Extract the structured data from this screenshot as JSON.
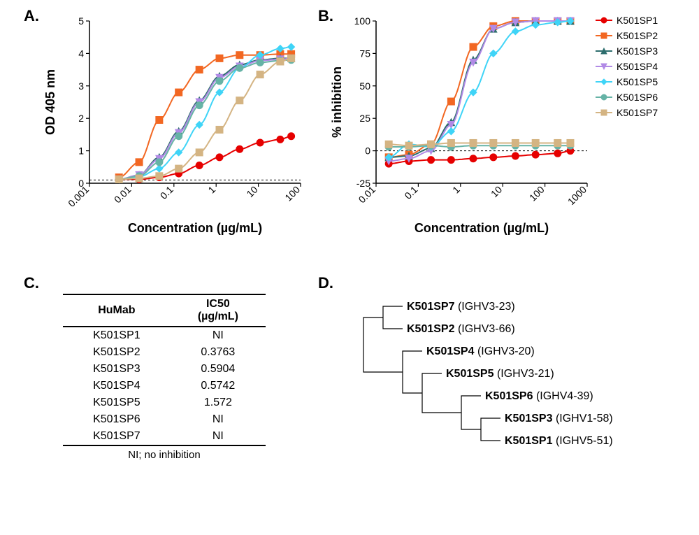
{
  "panels": {
    "A": {
      "label": "A."
    },
    "B": {
      "label": "B."
    },
    "C": {
      "label": "C."
    },
    "D": {
      "label": "D."
    }
  },
  "legend": {
    "items": [
      {
        "name": "K501SP1",
        "color": "#e60000",
        "marker": "circle"
      },
      {
        "name": "K501SP2",
        "color": "#f26722",
        "marker": "square"
      },
      {
        "name": "K501SP3",
        "color": "#2e6e6e",
        "marker": "triangle"
      },
      {
        "name": "K501SP4",
        "color": "#b18ae6",
        "marker": "triangleDown"
      },
      {
        "name": "K501SP5",
        "color": "#3fd4f7",
        "marker": "diamond"
      },
      {
        "name": "K501SP6",
        "color": "#66b3a6",
        "marker": "circle"
      },
      {
        "name": "K501SP7",
        "color": "#d4b483",
        "marker": "square"
      }
    ]
  },
  "chartA": {
    "type": "line",
    "title": null,
    "xlabel": "Concentration (µg/mL)",
    "ylabel": "OD 405 nm",
    "xscale": "log",
    "xlim": [
      0.001,
      100
    ],
    "xticks": [
      0.001,
      0.01,
      0.1,
      1,
      10,
      100
    ],
    "xtick_labels": [
      "0.001",
      "0.01",
      "0.1",
      "1",
      "10",
      "100"
    ],
    "ylim": [
      0,
      5
    ],
    "yticks": [
      0,
      1,
      2,
      3,
      4,
      5
    ],
    "ytick_labels": [
      "0",
      "1",
      "2",
      "3",
      "4",
      "5"
    ],
    "axis_color": "#000000",
    "ref_y": 0.1,
    "ref_dash": "3,3",
    "axis_fontsize": 14,
    "label_fontsize": 18,
    "marker_size": 5,
    "line_width": 2,
    "background_color": "#ffffff",
    "series": [
      {
        "key": "K501SP1",
        "x": [
          0.005,
          0.015,
          0.045,
          0.13,
          0.4,
          1.2,
          3.6,
          11,
          33,
          60
        ],
        "y": [
          0.12,
          0.12,
          0.18,
          0.3,
          0.55,
          0.8,
          1.05,
          1.25,
          1.35,
          1.45
        ]
      },
      {
        "key": "K501SP2",
        "x": [
          0.005,
          0.015,
          0.045,
          0.13,
          0.4,
          1.2,
          3.6,
          11,
          33,
          60
        ],
        "y": [
          0.18,
          0.65,
          1.95,
          2.8,
          3.5,
          3.85,
          3.95,
          3.95,
          3.98,
          3.98
        ]
      },
      {
        "key": "K501SP3",
        "x": [
          0.005,
          0.015,
          0.045,
          0.13,
          0.4,
          1.2,
          3.6,
          11,
          33,
          60
        ],
        "y": [
          0.12,
          0.25,
          0.8,
          1.6,
          2.55,
          3.3,
          3.65,
          3.8,
          3.85,
          3.85
        ]
      },
      {
        "key": "K501SP4",
        "x": [
          0.005,
          0.015,
          0.045,
          0.13,
          0.4,
          1.2,
          3.6,
          11,
          33,
          60
        ],
        "y": [
          0.12,
          0.25,
          0.75,
          1.55,
          2.5,
          3.25,
          3.6,
          3.78,
          3.82,
          3.85
        ]
      },
      {
        "key": "K501SP5",
        "x": [
          0.005,
          0.015,
          0.045,
          0.13,
          0.4,
          1.2,
          3.6,
          11,
          33,
          60
        ],
        "y": [
          0.12,
          0.2,
          0.45,
          0.95,
          1.8,
          2.8,
          3.55,
          3.95,
          4.15,
          4.2
        ]
      },
      {
        "key": "K501SP6",
        "x": [
          0.005,
          0.015,
          0.045,
          0.13,
          0.4,
          1.2,
          3.6,
          11,
          33,
          60
        ],
        "y": [
          0.12,
          0.22,
          0.65,
          1.45,
          2.4,
          3.15,
          3.55,
          3.72,
          3.78,
          3.8
        ]
      },
      {
        "key": "K501SP7",
        "x": [
          0.005,
          0.015,
          0.045,
          0.13,
          0.4,
          1.2,
          3.6,
          11,
          33,
          60
        ],
        "y": [
          0.12,
          0.15,
          0.22,
          0.45,
          0.95,
          1.65,
          2.55,
          3.35,
          3.75,
          3.85
        ]
      }
    ]
  },
  "chartB": {
    "type": "line",
    "title": null,
    "xlabel": "Concentration (µg/mL)",
    "ylabel": "% inhibition",
    "xscale": "log",
    "xlim": [
      0.01,
      1000
    ],
    "xticks": [
      0.01,
      0.1,
      1,
      10,
      100,
      1000
    ],
    "xtick_labels": [
      "0.01",
      "0.1",
      "1",
      "10",
      "100",
      "1000"
    ],
    "ylim": [
      -25,
      100
    ],
    "yticks": [
      -25,
      0,
      25,
      50,
      75,
      100
    ],
    "ytick_labels": [
      "-25",
      "0",
      "25",
      "50",
      "75",
      "100"
    ],
    "axis_color": "#000000",
    "ref_y": 0,
    "ref_dash": "3,3",
    "axis_fontsize": 14,
    "label_fontsize": 18,
    "marker_size": 5,
    "line_width": 2,
    "background_color": "#ffffff",
    "series": [
      {
        "key": "K501SP1",
        "x": [
          0.02,
          0.06,
          0.2,
          0.6,
          2,
          6,
          20,
          60,
          200,
          400
        ],
        "y": [
          -10,
          -8,
          -7,
          -7,
          -6,
          -5,
          -4,
          -3,
          -2,
          0
        ]
      },
      {
        "key": "K501SP2",
        "x": [
          0.02,
          0.06,
          0.2,
          0.6,
          2,
          6,
          20,
          60,
          200,
          400
        ],
        "y": [
          -5,
          -3,
          5,
          38,
          80,
          96,
          100,
          100,
          100,
          100
        ]
      },
      {
        "key": "K501SP3",
        "x": [
          0.02,
          0.06,
          0.2,
          0.6,
          2,
          6,
          20,
          60,
          200,
          400
        ],
        "y": [
          -5,
          -4,
          2,
          22,
          70,
          94,
          99,
          100,
          100,
          100
        ]
      },
      {
        "key": "K501SP4",
        "x": [
          0.02,
          0.06,
          0.2,
          0.6,
          2,
          6,
          20,
          60,
          200,
          400
        ],
        "y": [
          -8,
          -6,
          0,
          20,
          68,
          94,
          99,
          100,
          100,
          100
        ]
      },
      {
        "key": "K501SP5",
        "x": [
          0.02,
          0.06,
          0.2,
          0.6,
          2,
          6,
          20,
          60,
          200,
          400
        ],
        "y": [
          -5,
          5,
          3,
          15,
          45,
          75,
          92,
          97,
          99,
          100
        ]
      },
      {
        "key": "K501SP6",
        "x": [
          0.02,
          0.06,
          0.2,
          0.6,
          2,
          6,
          20,
          60,
          200,
          400
        ],
        "y": [
          3,
          3,
          4,
          3,
          4,
          4,
          4,
          4,
          4,
          4
        ]
      },
      {
        "key": "K501SP7",
        "x": [
          0.02,
          0.06,
          0.2,
          0.6,
          2,
          6,
          20,
          60,
          200,
          400
        ],
        "y": [
          5,
          4,
          5,
          6,
          6,
          6,
          6,
          6,
          6,
          6
        ]
      }
    ]
  },
  "tableC": {
    "columns": [
      "HuMab",
      "IC50 (µg/mL)"
    ],
    "col2_line1": "IC50",
    "col2_line2": "(µg/mL)",
    "rows": [
      [
        "K501SP1",
        "NI"
      ],
      [
        "K501SP2",
        "0.3763"
      ],
      [
        "K501SP3",
        "0.5904"
      ],
      [
        "K501SP4",
        "0.5742"
      ],
      [
        "K501SP5",
        "1.572"
      ],
      [
        "K501SP6",
        "NI"
      ],
      [
        "K501SP7",
        "NI"
      ]
    ],
    "footnote": "NI; no inhibition"
  },
  "treeD": {
    "type": "tree",
    "line_color": "#000000",
    "line_width": 1.2,
    "leaf_fontsize": 16,
    "v_spacing": 32,
    "leaves": [
      {
        "name": "K501SP7",
        "gene": "IGHV3-23",
        "x": 2
      },
      {
        "name": "K501SP2",
        "gene": "IGHV3-66",
        "x": 2
      },
      {
        "name": "K501SP4",
        "gene": "IGHV3-20",
        "x": 3
      },
      {
        "name": "K501SP5",
        "gene": "IGHV3-21",
        "x": 4
      },
      {
        "name": "K501SP6",
        "gene": "IGHV4-39",
        "x": 6
      },
      {
        "name": "K501SP3",
        "gene": "IGHV1-58",
        "x": 7
      },
      {
        "name": "K501SP1",
        "gene": "IGHV5-51",
        "x": 7
      }
    ],
    "hstep": 28
  }
}
